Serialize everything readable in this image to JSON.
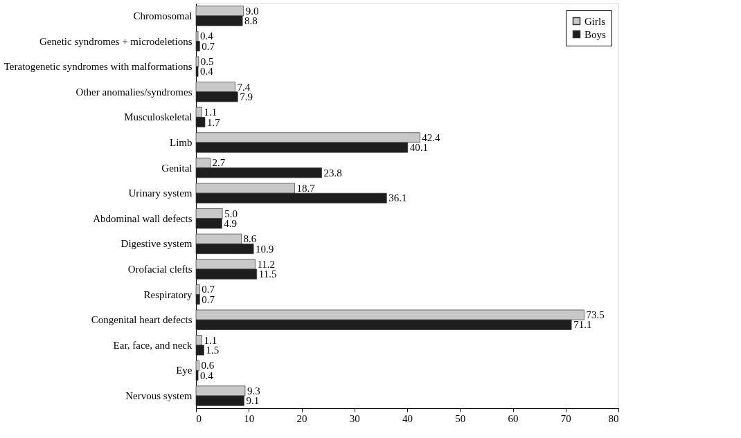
{
  "chart_data": {
    "type": "bar",
    "orientation": "horizontal",
    "categories": [
      "Chromosomal",
      "Genetic syndromes + microdeletions",
      "Teratogenetic syndromes with malformations",
      "Other anomalies/syndromes",
      "Musculoskeletal",
      "Limb",
      "Genital",
      "Urinary system",
      "Abdominal wall defects",
      "Digestive system",
      "Orofacial clefts",
      "Respiratory",
      "Congenital heart defects",
      "Ear, face, and neck",
      "Eye",
      "Nervous system"
    ],
    "series": [
      {
        "name": "Girls",
        "color": "#c8c8c8",
        "values": [
          9.0,
          0.4,
          0.5,
          7.4,
          1.1,
          42.4,
          2.7,
          18.7,
          5.0,
          8.6,
          11.2,
          0.7,
          73.5,
          1.1,
          0.6,
          9.3
        ],
        "value_labels": [
          "9.0",
          "0.4",
          "0.5",
          "7.4",
          "1.1",
          "42.4",
          "2.7",
          "18.7",
          "5.0",
          "8.6",
          "11.2",
          "0.7",
          "73.5",
          "1.1",
          "0.6",
          "9.3"
        ]
      },
      {
        "name": "Boys",
        "color": "#1e1e1e",
        "values": [
          8.8,
          0.7,
          0.4,
          7.9,
          1.7,
          40.1,
          23.8,
          36.1,
          4.9,
          10.9,
          11.5,
          0.7,
          71.1,
          1.5,
          0.4,
          9.1
        ],
        "value_labels": [
          "8.8",
          "0.7",
          "0.4",
          "7.9",
          "1.7",
          "40.1",
          "23.8",
          "36.1",
          "4.9",
          "10.9",
          "11.5",
          "0.7",
          "71.1",
          "1.5",
          "0.4",
          "9.1"
        ]
      }
    ],
    "xlim": [
      0,
      80
    ],
    "xticks": [
      0,
      10,
      20,
      30,
      40,
      50,
      60,
      70,
      80
    ],
    "grid": false,
    "legend": "top right"
  }
}
